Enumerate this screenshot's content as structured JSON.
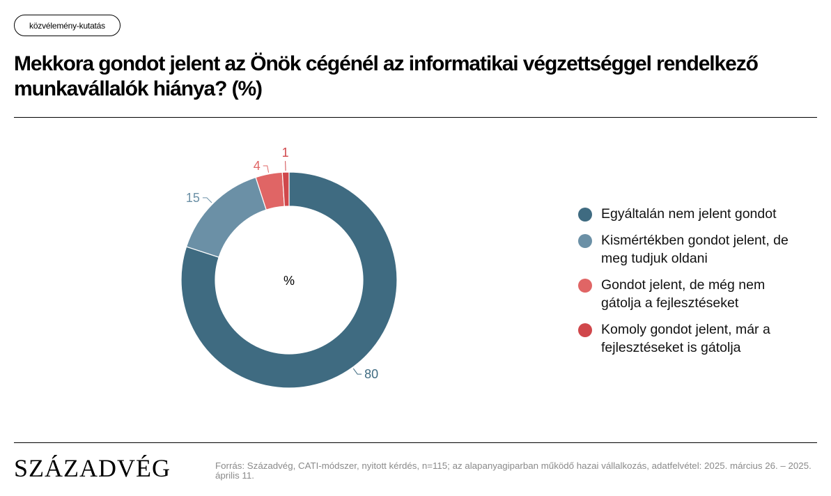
{
  "tag": "közvélemény-kutatás",
  "title": "Mekkora gondot jelent az Önök cégénél az informatikai végzettséggel rendelkező munkavállalók hiánya? (%)",
  "chart_data": {
    "type": "pie",
    "variant": "donut",
    "center_label": "%",
    "categories": [
      "Egyáltalán nem jelent gondot",
      "Kismértékben gondot jelent, de meg tudjuk oldani",
      "Gondot jelent, de még nem gátolja a fejlesztéseket",
      "Komoly gondot jelent, már a fejlesztéseket is gátolja"
    ],
    "values": [
      80,
      15,
      4,
      1
    ],
    "colors": [
      "#3f6b81",
      "#6b90a6",
      "#e06565",
      "#d0474b"
    ],
    "legend_position": "right"
  },
  "legend": [
    {
      "label": "Egyáltalán nem jelent gondot",
      "color": "#3f6b81"
    },
    {
      "label": "Kismértékben gondot jelent, de meg tudjuk oldani",
      "color": "#6b90a6"
    },
    {
      "label": "Gondot jelent, de még nem gátolja a fejlesztéseket",
      "color": "#e06565"
    },
    {
      "label": "Komoly gondot jelent, már a fejlesztéseket is gátolja",
      "color": "#d0474b"
    }
  ],
  "footer": {
    "logo": "SZÁZADVÉG",
    "source": "Forrás: Századvég, CATI-módszer, nyitott kérdés, n=115; az alapanyagiparban működő hazai vállalkozás, adatfelvétel: 2025. március 26. – 2025. április 11."
  }
}
